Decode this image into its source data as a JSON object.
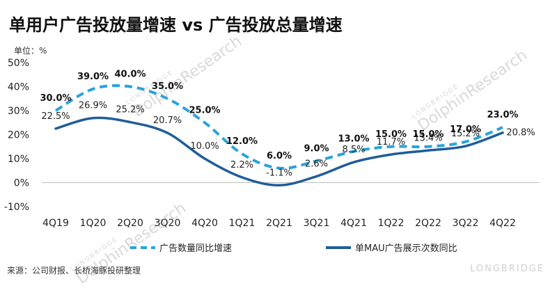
{
  "title": "单用户广告投放量增速 vs 广告投放总量增速",
  "unit_label": "单位：%",
  "source": "来源：公司财报、长桥海豚投研整理",
  "watermark": {
    "line1": "LONGBRIDGE",
    "line2": "DolphinResearch",
    "brand": "LONGBRIDGE"
  },
  "chart_data": {
    "type": "line",
    "categories": [
      "4Q19",
      "1Q20",
      "2Q20",
      "3Q20",
      "4Q20",
      "1Q21",
      "2Q21",
      "3Q21",
      "4Q21",
      "1Q22",
      "2Q22",
      "3Q22",
      "4Q22"
    ],
    "ylim": [
      -10,
      50
    ],
    "yticks": [
      "50%",
      "40%",
      "30%",
      "20%",
      "10%",
      "0%",
      "-10%"
    ],
    "grid": false,
    "legend_position": "bottom",
    "series": [
      {
        "name": "广告数量同比增速",
        "style": "dashed",
        "color": "#29a3dc",
        "values": [
          30.0,
          39.0,
          40.0,
          35.0,
          25.0,
          12.0,
          6.0,
          9.0,
          13.0,
          15.0,
          15.0,
          17.0,
          23.0
        ],
        "labels": [
          "30.0%",
          "39.0%",
          "40.0%",
          "35.0%",
          "25.0%",
          "12.0%",
          "6.0%",
          "9.0%",
          "13.0%",
          "15.0%",
          "15.0%",
          "17.0%",
          "23.0%"
        ]
      },
      {
        "name": "单MAU广告展示次数同比",
        "style": "solid",
        "color": "#1f5d99",
        "values": [
          22.5,
          26.9,
          25.2,
          20.7,
          10.0,
          2.2,
          -1.1,
          2.6,
          8.5,
          11.7,
          13.4,
          15.2,
          20.8
        ],
        "labels": [
          "22.5%",
          "26.9%",
          "25.2%",
          "20.7%",
          "10.0%",
          "2.2%",
          "-1.1%",
          "2.6%",
          "8.5%",
          "11.7%",
          "13.4%",
          "15.2%",
          "20.8%"
        ]
      }
    ]
  }
}
